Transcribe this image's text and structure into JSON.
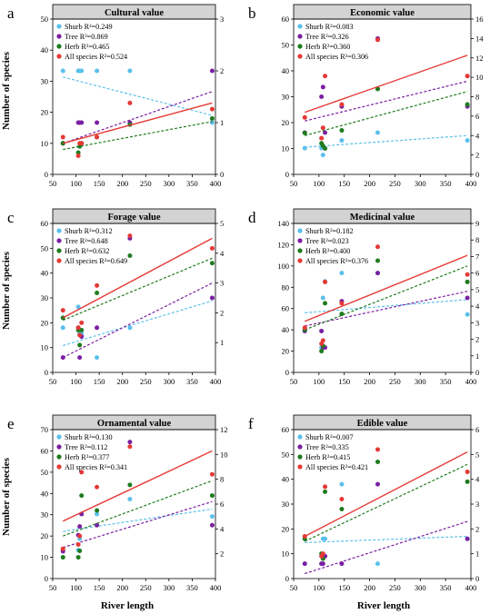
{
  "figure": {
    "xlabel": "River length",
    "ylabel": "Number of species"
  },
  "colors": {
    "shrub": "#5bc0eb",
    "tree": "#7b1fa2",
    "herb": "#1e7b1e",
    "all": "#e53935",
    "panel_header": "#d3d3d3"
  },
  "chart_data": [
    {
      "type": "scatter",
      "letter": "a",
      "title": "Cultural value",
      "xlim": [
        50,
        400
      ],
      "xticks": [
        50,
        100,
        150,
        200,
        250,
        300,
        350,
        400
      ],
      "ylim": [
        0,
        50
      ],
      "yticks": [
        0,
        10,
        20,
        30,
        40,
        50
      ],
      "y2lim": [
        0,
        3
      ],
      "y2ticks": [
        0,
        1,
        2,
        3
      ],
      "legend": [
        "Shurb R²=0.249",
        "Tree R²=0.869",
        "Herb R²=0.465",
        "All species R²=0.524"
      ],
      "x": [
        72,
        105,
        108,
        112,
        145,
        216,
        393
      ],
      "series": [
        {
          "name": "Shurb",
          "values": [
            2,
            2,
            2,
            2,
            2,
            2,
            1
          ],
          "line": [
            1.88,
            1.14
          ],
          "axis": "right"
        },
        {
          "name": "Tree",
          "values": [
            0.6,
            1,
            1,
            1,
            1,
            1,
            2
          ],
          "line": [
            0.6,
            1.6
          ],
          "axis": "right"
        },
        {
          "name": "Herb",
          "values": [
            10,
            7,
            9,
            10,
            12,
            16,
            18
          ],
          "line": [
            8,
            17
          ],
          "axis": "left"
        },
        {
          "name": "All species",
          "values": [
            12,
            6,
            10,
            10,
            12,
            23,
            21
          ],
          "line": [
            10,
            23
          ],
          "axis": "left"
        }
      ]
    },
    {
      "type": "scatter",
      "letter": "b",
      "title": "Economic value",
      "xlim": [
        50,
        400
      ],
      "xticks": [
        50,
        100,
        150,
        200,
        250,
        300,
        350,
        400
      ],
      "ylim": [
        0,
        60
      ],
      "yticks": [
        0,
        10,
        20,
        30,
        40,
        50,
        60
      ],
      "y2lim": [
        0,
        16
      ],
      "y2ticks": [
        0,
        2,
        4,
        6,
        8,
        10,
        12,
        14,
        16
      ],
      "legend": [
        "Shurb R²=0.083",
        "Tree R²=0.326",
        "Herb R²=0.360",
        "All species R²=0.306"
      ],
      "x": [
        72,
        105,
        108,
        112,
        145,
        216,
        393
      ],
      "series": [
        {
          "name": "Shurb",
          "values": [
            2.7,
            2.7,
            2,
            2.7,
            3.5,
            4.3,
            3.5
          ],
          "line": [
            2.8,
            4.0
          ],
          "axis": "right"
        },
        {
          "name": "Tree",
          "values": [
            4.3,
            8,
            9,
            4.3,
            7,
            14,
            7
          ],
          "line": [
            5.5,
            9.6
          ],
          "axis": "right"
        },
        {
          "name": "Herb",
          "values": [
            16,
            12,
            11,
            10,
            17,
            33,
            27
          ],
          "line": [
            15,
            32
          ],
          "axis": "left"
        },
        {
          "name": "All species",
          "values": [
            22,
            14,
            18,
            38,
            27,
            52,
            38
          ],
          "line": [
            24,
            46
          ],
          "axis": "left"
        }
      ]
    },
    {
      "type": "scatter",
      "letter": "c",
      "title": "Forage value",
      "xlim": [
        50,
        400
      ],
      "xticks": [
        50,
        100,
        150,
        200,
        250,
        300,
        350,
        400
      ],
      "ylim": [
        0,
        60
      ],
      "yticks": [
        0,
        10,
        20,
        30,
        40,
        50,
        60
      ],
      "y2lim": [
        0,
        5
      ],
      "y2ticks": [
        1,
        2,
        3,
        4,
        5
      ],
      "legend": [
        "Shurb R²=0.312",
        "Tree R²=0.648",
        "Herb R²=0.632",
        "All species R²=0.649"
      ],
      "x": [
        72,
        105,
        108,
        112,
        145,
        216,
        393
      ],
      "series": [
        {
          "name": "Shurb",
          "values": [
            1.5,
            2.2,
            1.3,
            1.3,
            0.5,
            1.5,
            2.5
          ],
          "line": [
            0.9,
            2.4
          ],
          "axis": "right"
        },
        {
          "name": "Tree",
          "values": [
            0.5,
            1.5,
            0.5,
            1.2,
            1.5,
            4.5,
            2.5
          ],
          "line": [
            0.5,
            3.0
          ],
          "axis": "right"
        },
        {
          "name": "Herb",
          "values": [
            22,
            17,
            11,
            17,
            32,
            47,
            44
          ],
          "line": [
            21,
            46
          ],
          "axis": "left"
        },
        {
          "name": "All species",
          "values": [
            25,
            18,
            15,
            20,
            35,
            55,
            50
          ],
          "line": [
            22,
            54
          ],
          "axis": "left"
        }
      ]
    },
    {
      "type": "scatter",
      "letter": "d",
      "title": "Medicinal value",
      "xlim": [
        50,
        400
      ],
      "xticks": [
        50,
        100,
        150,
        200,
        250,
        300,
        350,
        400
      ],
      "ylim": [
        0,
        140
      ],
      "yticks": [
        0,
        20,
        40,
        60,
        80,
        100,
        120,
        140
      ],
      "y2lim": [
        0,
        9
      ],
      "y2ticks": [
        0,
        1,
        2,
        3,
        4,
        5,
        6,
        7,
        8,
        9
      ],
      "legend": [
        "Shurb R²=0.182",
        "Tree R²=0.023",
        "Herb R²=0.400",
        "All species R²=0.376"
      ],
      "x": [
        72,
        105,
        108,
        112,
        145,
        216,
        393
      ],
      "series": [
        {
          "name": "Shurb",
          "values": [
            2.5,
            1.5,
            4.5,
            5.5,
            6,
            6,
            3.5
          ],
          "line": [
            3.6,
            4.4
          ],
          "axis": "right"
        },
        {
          "name": "Tree",
          "values": [
            2.5,
            2.5,
            1.5,
            1.5,
            4.3,
            6,
            4.5
          ],
          "line": [
            2.8,
            4.9
          ],
          "axis": "right"
        },
        {
          "name": "Herb",
          "values": [
            40,
            20,
            25,
            65,
            55,
            105,
            85
          ],
          "line": [
            40,
            100
          ],
          "axis": "left"
        },
        {
          "name": "All species",
          "values": [
            42,
            27,
            30,
            85,
            65,
            118,
            92
          ],
          "line": [
            48,
            110
          ],
          "axis": "left"
        }
      ]
    },
    {
      "type": "scatter",
      "letter": "e",
      "title": "Ornamental value",
      "xlim": [
        50,
        400
      ],
      "xticks": [
        50,
        100,
        150,
        200,
        250,
        300,
        350,
        400
      ],
      "ylim": [
        0,
        70
      ],
      "yticks": [
        0,
        10,
        20,
        30,
        40,
        50,
        60,
        70
      ],
      "y2lim": [
        0,
        12
      ],
      "y2ticks": [
        2,
        4,
        6,
        8,
        10,
        12
      ],
      "legend": [
        "Shurb R²=0.130",
        "Tree R²=0.112",
        "Herb R²=0.377",
        "All species R²=0.341"
      ],
      "x": [
        72,
        105,
        108,
        112,
        145,
        216,
        393
      ],
      "series": [
        {
          "name": "Shurb",
          "values": [
            2.3,
            2.3,
            3.2,
            5.2,
            5.2,
            6.4,
            5.0
          ],
          "line": [
            3.8,
            5.6
          ],
          "axis": "right"
        },
        {
          "name": "Tree",
          "values": [
            2.2,
            3.5,
            4.2,
            5.2,
            4.3,
            11,
            4.3
          ],
          "line": [
            2.5,
            6.2
          ],
          "axis": "right"
        },
        {
          "name": "Herb",
          "values": [
            10,
            10,
            13,
            39,
            32,
            44,
            39
          ],
          "line": [
            20,
            46
          ],
          "axis": "left"
        },
        {
          "name": "All species",
          "values": [
            14,
            16,
            20,
            50,
            43,
            62,
            49
          ],
          "line": [
            27,
            60
          ],
          "axis": "left"
        }
      ]
    },
    {
      "type": "scatter",
      "letter": "f",
      "title": "Edible value",
      "xlim": [
        50,
        400
      ],
      "xticks": [
        50,
        100,
        150,
        200,
        250,
        300,
        350,
        400
      ],
      "ylim": [
        0,
        60
      ],
      "yticks": [
        0,
        10,
        20,
        30,
        40,
        50,
        60
      ],
      "y2lim": [
        0,
        6
      ],
      "y2ticks": [
        0,
        1,
        2,
        3,
        4,
        5,
        6
      ],
      "legend": [
        "Shurb R²=0.007",
        "Tree R²=0.335",
        "Herb R²=0.415",
        "All species R²=0.421"
      ],
      "x": [
        72,
        105,
        108,
        112,
        145,
        216,
        393
      ],
      "series": [
        {
          "name": "Shurb",
          "values": [
            0.6,
            0.6,
            1.6,
            1.6,
            3.8,
            0.6,
            1.6
          ],
          "line": [
            1.45,
            1.7
          ],
          "axis": "right"
        },
        {
          "name": "Tree",
          "values": [
            0.6,
            0.6,
            0.6,
            0.9,
            0.6,
            3.8,
            1.6
          ],
          "line": [
            0.2,
            2.3
          ],
          "axis": "right"
        },
        {
          "name": "Herb",
          "values": [
            16,
            10,
            8,
            35,
            28,
            47,
            39
          ],
          "line": [
            15,
            46
          ],
          "axis": "left"
        },
        {
          "name": "All species",
          "values": [
            17,
            9,
            10,
            37,
            32,
            52,
            43
          ],
          "line": [
            17,
            51
          ],
          "axis": "left"
        }
      ]
    }
  ]
}
